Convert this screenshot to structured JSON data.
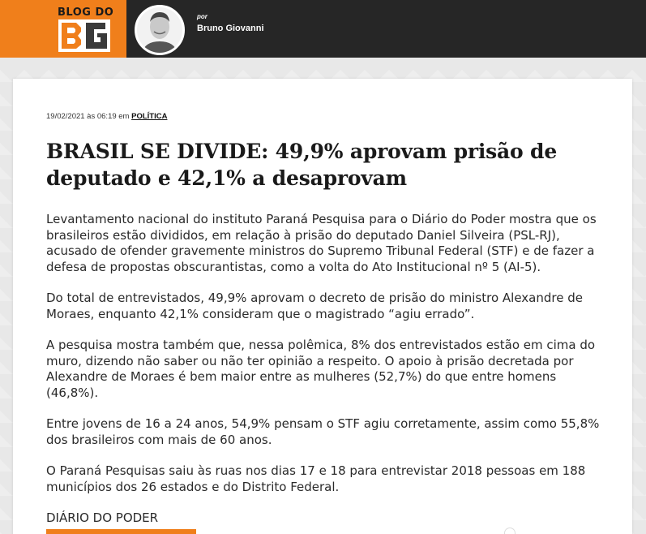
{
  "header": {
    "logo_text": "BLOG DO",
    "byline_prefix": "por",
    "author_name": "Bruno Giovanni",
    "brand_color": "#f07f1b"
  },
  "article": {
    "date": "19/02/2021 às 06:19 em ",
    "category": "POLÍTICA",
    "title": "BRASIL SE DIVIDE: 49,9% aprovam prisão de deputado e 42,1% a desaprovam",
    "paragraphs": [
      "Levantamento nacional do instituto Paraná Pesquisa para o Diário do Poder mostra que os brasileiros estão divididos, em relação à prisão do deputado Daniel Silveira (PSL-RJ), acusado de ofender gravemente ministros do Supremo Tribunal Federal (STF) e de fazer a defesa de propostas obscurantistas, como a volta do Ato Institucional nº 5 (AI-5).",
      "Do total de entrevistados, 49,9% aprovam o decreto de prisão do ministro Alexandre de Moraes, enquanto 42,1% consideram que o magistrado “agiu errado”.",
      "A pesquisa mostra também que, nessa polêmica, 8% dos entrevistados estão em cima do muro, dizendo não saber ou não ter opinião a respeito. O apoio à prisão decretada por Alexandre de Moraes é bem maior entre as mulheres (52,7%) do que entre homens (46,8%).",
      "Entre jovens de 16 a 24 anos, 54,9% pensam o STF agiu corretamente, assim como 55,8% dos brasileiros com mais de 60 anos.",
      "O Paraná Pesquisas saiu às ruas nos dias 17 e 18 para entrevistar 2018 pessoas em 188 municípios dos 26 estados e do Distrito Federal.",
      "DIÁRIO DO PODER"
    ]
  }
}
